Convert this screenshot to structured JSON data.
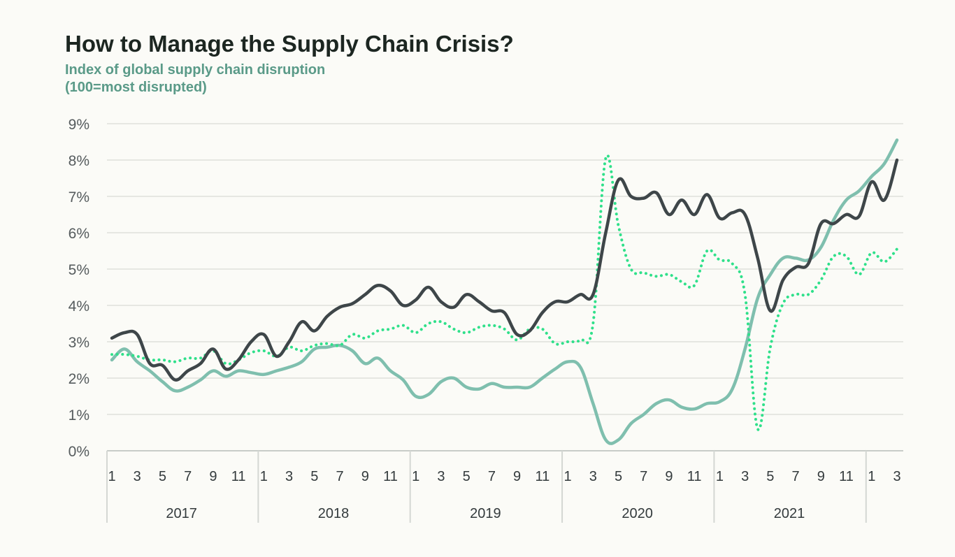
{
  "chart_data": {
    "type": "line",
    "title": "How to Manage the Supply Chain Crisis?",
    "subtitle": "Index of global supply chain disruption (100=most disrupted)",
    "x_format": "year-month",
    "x_start": "2017-01",
    "x_end": "2022-03",
    "ylim": [
      0,
      9
    ],
    "yticks": [
      0,
      1,
      2,
      3,
      4,
      5,
      6,
      7,
      8,
      9
    ],
    "ytick_labels": [
      "0%",
      "1%",
      "2%",
      "3%",
      "4%",
      "5%",
      "6%",
      "7%",
      "8%",
      "9%"
    ],
    "xtick_months": [
      "1",
      "3",
      "5",
      "7",
      "9",
      "11"
    ],
    "years": [
      {
        "label": "2017",
        "months": [
          "1",
          "3",
          "5",
          "7",
          "9",
          "11"
        ]
      },
      {
        "label": "2018",
        "months": [
          "1",
          "3",
          "5",
          "7",
          "9",
          "11"
        ]
      },
      {
        "label": "2019",
        "months": [
          "1",
          "3",
          "5",
          "7",
          "9",
          "11"
        ]
      },
      {
        "label": "2020",
        "months": [
          "1",
          "3",
          "5",
          "7",
          "9",
          "11"
        ]
      },
      {
        "label": "2021",
        "months": [
          "1",
          "3",
          "5",
          "7",
          "9",
          "11"
        ]
      },
      {
        "label": "",
        "months": [
          "1",
          "3"
        ]
      }
    ],
    "grid": true,
    "legend": "none",
    "series": [
      {
        "color": "#3e4649",
        "style": "solid",
        "points": [
          [
            "2017-01",
            3.1
          ],
          [
            "2017-02",
            3.25
          ],
          [
            "2017-03",
            3.2
          ],
          [
            "2017-04",
            2.4
          ],
          [
            "2017-05",
            2.35
          ],
          [
            "2017-06",
            1.95
          ],
          [
            "2017-07",
            2.2
          ],
          [
            "2017-08",
            2.4
          ],
          [
            "2017-09",
            2.8
          ],
          [
            "2017-10",
            2.25
          ],
          [
            "2017-11",
            2.5
          ],
          [
            "2017-12",
            3.0
          ],
          [
            "2018-01",
            3.2
          ],
          [
            "2018-02",
            2.6
          ],
          [
            "2018-03",
            3.0
          ],
          [
            "2018-04",
            3.55
          ],
          [
            "2018-05",
            3.3
          ],
          [
            "2018-06",
            3.7
          ],
          [
            "2018-07",
            3.95
          ],
          [
            "2018-08",
            4.05
          ],
          [
            "2018-09",
            4.3
          ],
          [
            "2018-10",
            4.55
          ],
          [
            "2018-11",
            4.4
          ],
          [
            "2018-12",
            4.0
          ],
          [
            "2019-01",
            4.15
          ],
          [
            "2019-02",
            4.5
          ],
          [
            "2019-03",
            4.1
          ],
          [
            "2019-04",
            3.95
          ],
          [
            "2019-05",
            4.3
          ],
          [
            "2019-06",
            4.1
          ],
          [
            "2019-07",
            3.85
          ],
          [
            "2019-08",
            3.8
          ],
          [
            "2019-09",
            3.2
          ],
          [
            "2019-10",
            3.3
          ],
          [
            "2019-11",
            3.8
          ],
          [
            "2019-12",
            4.1
          ],
          [
            "2020-01",
            4.1
          ],
          [
            "2020-02",
            4.3
          ],
          [
            "2020-03",
            4.3
          ],
          [
            "2020-04",
            6.0
          ],
          [
            "2020-05",
            7.45
          ],
          [
            "2020-06",
            7.0
          ],
          [
            "2020-07",
            6.95
          ],
          [
            "2020-08",
            7.1
          ],
          [
            "2020-09",
            6.5
          ],
          [
            "2020-10",
            6.9
          ],
          [
            "2020-11",
            6.5
          ],
          [
            "2020-12",
            7.05
          ],
          [
            "2021-01",
            6.4
          ],
          [
            "2021-02",
            6.55
          ],
          [
            "2021-03",
            6.5
          ],
          [
            "2021-04",
            5.3
          ],
          [
            "2021-05",
            3.85
          ],
          [
            "2021-06",
            4.7
          ],
          [
            "2021-07",
            5.05
          ],
          [
            "2021-08",
            5.15
          ],
          [
            "2021-09",
            6.25
          ],
          [
            "2021-10",
            6.25
          ],
          [
            "2021-11",
            6.5
          ],
          [
            "2021-12",
            6.45
          ],
          [
            "2022-01",
            7.4
          ],
          [
            "2022-02",
            6.9
          ],
          [
            "2022-03",
            8.0
          ]
        ]
      },
      {
        "color": "#7fbfae",
        "style": "solid",
        "points": [
          [
            "2017-01",
            2.5
          ],
          [
            "2017-02",
            2.8
          ],
          [
            "2017-03",
            2.45
          ],
          [
            "2017-04",
            2.2
          ],
          [
            "2017-05",
            1.9
          ],
          [
            "2017-06",
            1.65
          ],
          [
            "2017-07",
            1.75
          ],
          [
            "2017-08",
            1.95
          ],
          [
            "2017-09",
            2.2
          ],
          [
            "2017-10",
            2.05
          ],
          [
            "2017-11",
            2.2
          ],
          [
            "2017-12",
            2.15
          ],
          [
            "2018-01",
            2.1
          ],
          [
            "2018-02",
            2.2
          ],
          [
            "2018-03",
            2.3
          ],
          [
            "2018-04",
            2.45
          ],
          [
            "2018-05",
            2.8
          ],
          [
            "2018-06",
            2.85
          ],
          [
            "2018-07",
            2.9
          ],
          [
            "2018-08",
            2.75
          ],
          [
            "2018-09",
            2.4
          ],
          [
            "2018-10",
            2.55
          ],
          [
            "2018-11",
            2.2
          ],
          [
            "2018-12",
            1.95
          ],
          [
            "2019-01",
            1.5
          ],
          [
            "2019-02",
            1.55
          ],
          [
            "2019-03",
            1.9
          ],
          [
            "2019-04",
            2.0
          ],
          [
            "2019-05",
            1.75
          ],
          [
            "2019-06",
            1.7
          ],
          [
            "2019-07",
            1.85
          ],
          [
            "2019-08",
            1.75
          ],
          [
            "2019-09",
            1.75
          ],
          [
            "2019-10",
            1.75
          ],
          [
            "2019-11",
            2.0
          ],
          [
            "2019-12",
            2.25
          ],
          [
            "2020-01",
            2.45
          ],
          [
            "2020-02",
            2.3
          ],
          [
            "2020-03",
            1.3
          ],
          [
            "2020-04",
            0.3
          ],
          [
            "2020-05",
            0.3
          ],
          [
            "2020-06",
            0.75
          ],
          [
            "2020-07",
            1.0
          ],
          [
            "2020-08",
            1.3
          ],
          [
            "2020-09",
            1.4
          ],
          [
            "2020-10",
            1.2
          ],
          [
            "2020-11",
            1.15
          ],
          [
            "2020-12",
            1.3
          ],
          [
            "2021-01",
            1.35
          ],
          [
            "2021-02",
            1.7
          ],
          [
            "2021-03",
            2.8
          ],
          [
            "2021-04",
            4.2
          ],
          [
            "2021-05",
            4.85
          ],
          [
            "2021-06",
            5.3
          ],
          [
            "2021-07",
            5.3
          ],
          [
            "2021-08",
            5.25
          ],
          [
            "2021-09",
            5.6
          ],
          [
            "2021-10",
            6.35
          ],
          [
            "2021-11",
            6.9
          ],
          [
            "2021-12",
            7.15
          ],
          [
            "2022-01",
            7.55
          ],
          [
            "2022-02",
            7.9
          ],
          [
            "2022-03",
            8.55
          ]
        ]
      },
      {
        "color": "#2fe08a",
        "style": "dotted",
        "points": [
          [
            "2017-01",
            2.65
          ],
          [
            "2017-02",
            2.65
          ],
          [
            "2017-03",
            2.6
          ],
          [
            "2017-04",
            2.5
          ],
          [
            "2017-05",
            2.5
          ],
          [
            "2017-06",
            2.45
          ],
          [
            "2017-07",
            2.55
          ],
          [
            "2017-08",
            2.55
          ],
          [
            "2017-09",
            2.75
          ],
          [
            "2017-10",
            2.4
          ],
          [
            "2017-11",
            2.5
          ],
          [
            "2017-12",
            2.7
          ],
          [
            "2018-01",
            2.75
          ],
          [
            "2018-02",
            2.6
          ],
          [
            "2018-03",
            2.85
          ],
          [
            "2018-04",
            2.75
          ],
          [
            "2018-05",
            2.9
          ],
          [
            "2018-06",
            2.95
          ],
          [
            "2018-07",
            2.9
          ],
          [
            "2018-08",
            3.2
          ],
          [
            "2018-09",
            3.1
          ],
          [
            "2018-10",
            3.3
          ],
          [
            "2018-11",
            3.35
          ],
          [
            "2018-12",
            3.45
          ],
          [
            "2019-01",
            3.25
          ],
          [
            "2019-02",
            3.5
          ],
          [
            "2019-03",
            3.55
          ],
          [
            "2019-04",
            3.35
          ],
          [
            "2019-05",
            3.25
          ],
          [
            "2019-06",
            3.4
          ],
          [
            "2019-07",
            3.45
          ],
          [
            "2019-08",
            3.35
          ],
          [
            "2019-09",
            3.05
          ],
          [
            "2019-10",
            3.35
          ],
          [
            "2019-11",
            3.35
          ],
          [
            "2019-12",
            2.95
          ],
          [
            "2020-01",
            3.0
          ],
          [
            "2020-02",
            3.05
          ],
          [
            "2020-03",
            3.5
          ],
          [
            "2020-04",
            8.05
          ],
          [
            "2020-05",
            6.2
          ],
          [
            "2020-06",
            5.0
          ],
          [
            "2020-07",
            4.9
          ],
          [
            "2020-08",
            4.8
          ],
          [
            "2020-09",
            4.85
          ],
          [
            "2020-10",
            4.65
          ],
          [
            "2020-11",
            4.55
          ],
          [
            "2020-12",
            5.5
          ],
          [
            "2021-01",
            5.25
          ],
          [
            "2021-02",
            5.15
          ],
          [
            "2021-03",
            4.3
          ],
          [
            "2021-04",
            0.6
          ],
          [
            "2021-05",
            2.85
          ],
          [
            "2021-06",
            4.05
          ],
          [
            "2021-07",
            4.3
          ],
          [
            "2021-08",
            4.3
          ],
          [
            "2021-09",
            4.7
          ],
          [
            "2021-10",
            5.35
          ],
          [
            "2021-11",
            5.35
          ],
          [
            "2021-12",
            4.85
          ],
          [
            "2022-01",
            5.45
          ],
          [
            "2022-02",
            5.2
          ],
          [
            "2022-03",
            5.55
          ]
        ]
      }
    ]
  }
}
